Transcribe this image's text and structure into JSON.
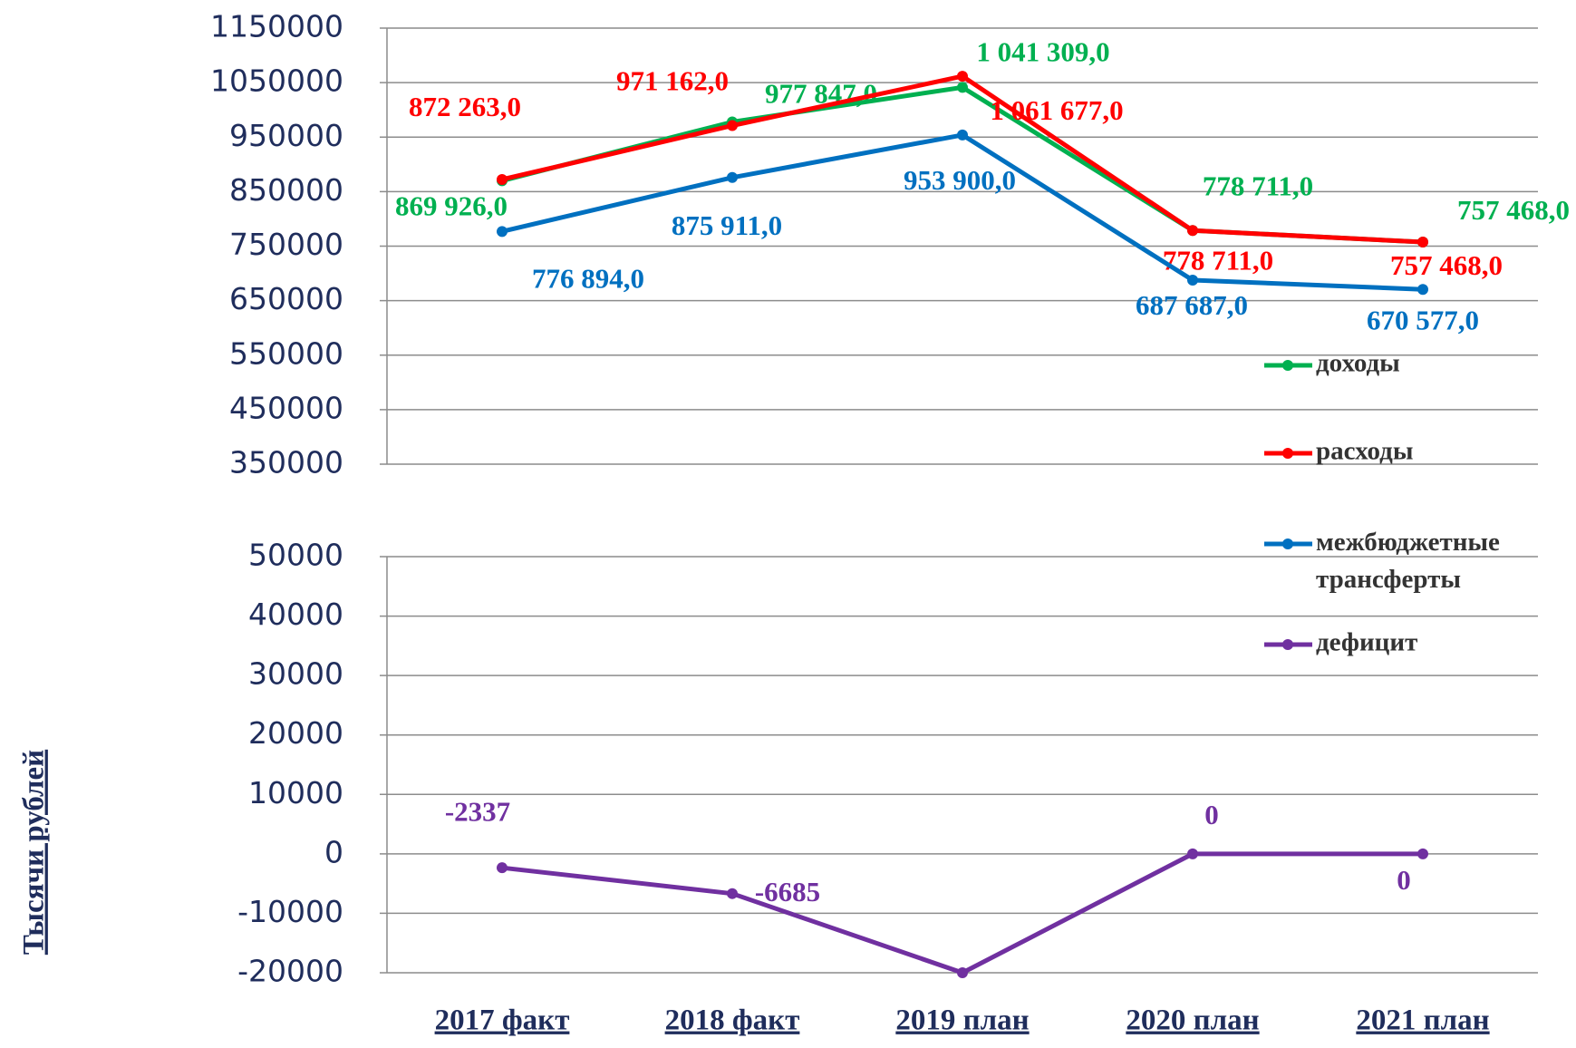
{
  "chart_data": [
    {
      "type": "line",
      "ylim": [
        350000,
        1150000
      ],
      "yticks": [
        350000,
        450000,
        550000,
        650000,
        750000,
        850000,
        950000,
        1050000,
        1150000
      ],
      "grid": true,
      "series": [
        {
          "name": "доходы",
          "color": "#00b050",
          "values": [
            869926,
            977847,
            1041309,
            778711,
            757468
          ],
          "value_labels": [
            "869 926,0",
            "977 847,0",
            "1 041 309,0",
            "778 711,0",
            "757 468,0"
          ]
        },
        {
          "name": "расходы",
          "color": "#ff0000",
          "values": [
            872263,
            971162,
            1061677,
            778711,
            757468
          ],
          "value_labels": [
            "872 263,0",
            "971 162,0",
            "1 061 677,0",
            "778 711,0",
            "757 468,0"
          ]
        },
        {
          "name": "межбюджетные трансферты",
          "color": "#0070c0",
          "values": [
            776894,
            875911,
            953900,
            687687,
            670577
          ],
          "value_labels": [
            "776 894,0",
            "875 911,0",
            "953 900,0",
            "687 687,0",
            "670 577,0"
          ]
        }
      ]
    },
    {
      "type": "line",
      "y_label": "Тысячи рублей",
      "categories": [
        "2017 факт",
        "2018 факт",
        "2019 план",
        "2020 план",
        "2021 план"
      ],
      "ylim": [
        -20000,
        50000
      ],
      "yticks": [
        -20000,
        -10000,
        0,
        10000,
        20000,
        30000,
        40000,
        50000
      ],
      "grid": true,
      "series": [
        {
          "name": "дефицит",
          "color": "#7030a0",
          "values": [
            -2337,
            -6685,
            -20000,
            0,
            0
          ],
          "value_labels": [
            "-2337",
            "-6685",
            null,
            "0",
            "0"
          ]
        }
      ]
    }
  ]
}
